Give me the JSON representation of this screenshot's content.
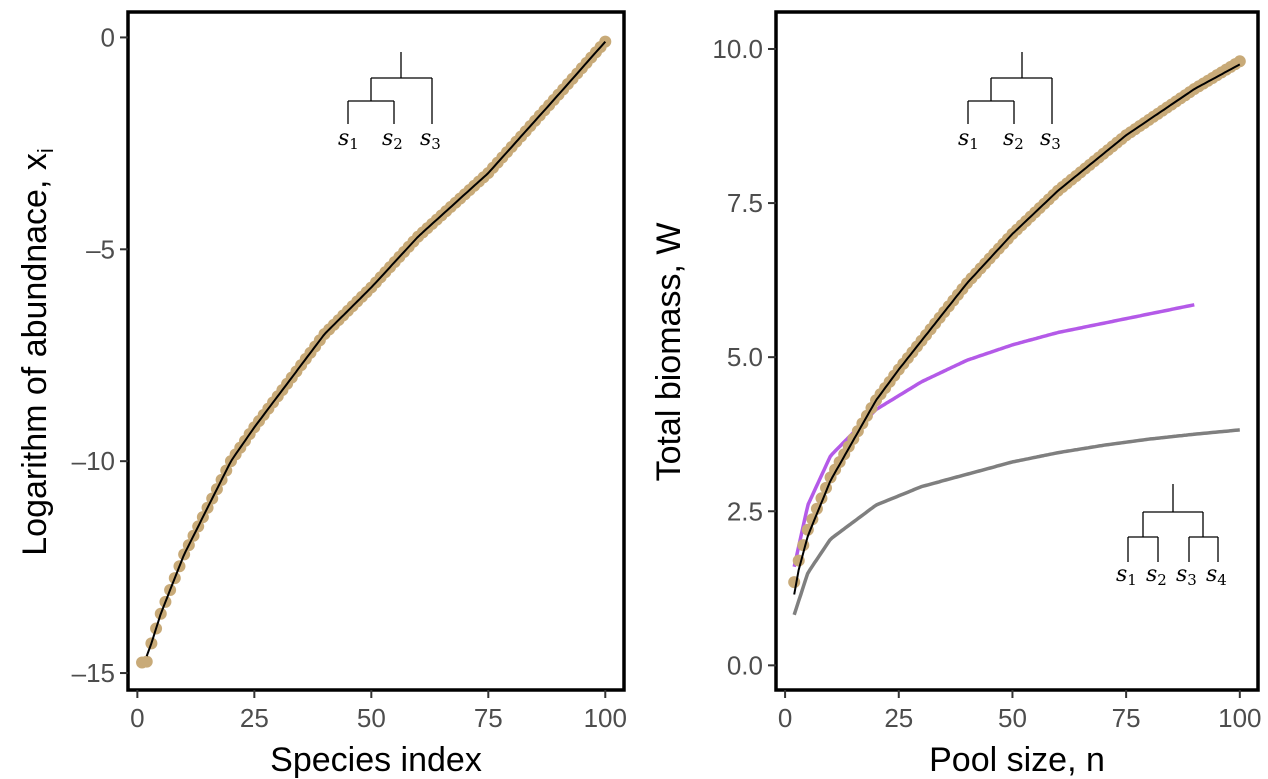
{
  "colors": {
    "points": "#c8aa78",
    "fit_line": "#000000",
    "purple_series": "#b45ae8",
    "gray_series": "#7f7f7f",
    "frame": "#000000",
    "tick_text": "#4d4d4d"
  },
  "chart_data": [
    {
      "type": "scatter",
      "title": "",
      "xlabel": "Species index",
      "ylabel": "Logarithm of abundnace, x",
      "ylabel_sub": "i",
      "xlim": [
        -2,
        104
      ],
      "ylim": [
        -15.4,
        0.6
      ],
      "xticks": [
        0,
        25,
        50,
        75,
        100
      ],
      "yticks": [
        -15,
        -10,
        -5,
        0
      ],
      "ytick_labels": [
        "–15",
        "–10",
        "–5",
        "0"
      ],
      "grid": false,
      "series": [
        {
          "role": "points",
          "x_from": 1,
          "x_to": 100,
          "x_step": 1,
          "y_at": [
            [
              1,
              -14.75
            ],
            [
              2,
              -14.73
            ],
            [
              3,
              -14.3
            ],
            [
              5,
              -13.6
            ],
            [
              10,
              -12.2
            ],
            [
              20,
              -10.0
            ],
            [
              25,
              -9.2
            ],
            [
              40,
              -7.0
            ],
            [
              50,
              -5.9
            ],
            [
              60,
              -4.7
            ],
            [
              75,
              -3.2
            ],
            [
              90,
              -1.35
            ],
            [
              100,
              -0.1
            ]
          ]
        },
        {
          "role": "line",
          "x_from": 2,
          "x_to": 100,
          "y_at": [
            [
              2,
              -14.6
            ],
            [
              3,
              -14.3
            ],
            [
              5,
              -13.6
            ],
            [
              10,
              -12.2
            ],
            [
              20,
              -10.0
            ],
            [
              25,
              -9.2
            ],
            [
              40,
              -7.0
            ],
            [
              50,
              -5.9
            ],
            [
              60,
              -4.7
            ],
            [
              75,
              -3.2
            ],
            [
              90,
              -1.35
            ],
            [
              100,
              -0.1
            ]
          ]
        }
      ],
      "annotations": [
        {
          "type": "tree",
          "label": "s1 s2 s3"
        }
      ]
    },
    {
      "type": "line",
      "title": "",
      "xlabel": "Pool size, n",
      "ylabel": "Total biomass, W",
      "xlim": [
        -2,
        104
      ],
      "ylim": [
        -0.4,
        10.6
      ],
      "xticks": [
        0,
        25,
        50,
        75,
        100
      ],
      "yticks": [
        0.0,
        2.5,
        5.0,
        7.5,
        10.0
      ],
      "ytick_labels": [
        "0.0",
        "2.5",
        "5.0",
        "7.5",
        "10.0"
      ],
      "grid": false,
      "series": [
        {
          "role": "points",
          "x_from": 2,
          "x_to": 100,
          "x_step": 1,
          "y_at": [
            [
              2,
              1.35
            ],
            [
              3,
              1.7
            ],
            [
              5,
              2.2
            ],
            [
              10,
              3.05
            ],
            [
              20,
              4.3
            ],
            [
              25,
              4.8
            ],
            [
              40,
              6.2
            ],
            [
              50,
              7.0
            ],
            [
              60,
              7.7
            ],
            [
              75,
              8.6
            ],
            [
              90,
              9.35
            ],
            [
              100,
              9.8
            ]
          ]
        },
        {
          "role": "line",
          "x_from": 2,
          "x_to": 100,
          "y_at": [
            [
              2,
              1.15
            ],
            [
              3,
              1.55
            ],
            [
              5,
              2.1
            ],
            [
              10,
              3.0
            ],
            [
              20,
              4.3
            ],
            [
              25,
              4.8
            ],
            [
              40,
              6.2
            ],
            [
              50,
              7.0
            ],
            [
              60,
              7.7
            ],
            [
              75,
              8.6
            ],
            [
              90,
              9.35
            ],
            [
              100,
              9.75
            ]
          ]
        },
        {
          "role": "purple",
          "x_from": 2,
          "x_to": 90,
          "y_at": [
            [
              2,
              1.6
            ],
            [
              5,
              2.6
            ],
            [
              10,
              3.4
            ],
            [
              20,
              4.15
            ],
            [
              30,
              4.6
            ],
            [
              40,
              4.95
            ],
            [
              50,
              5.2
            ],
            [
              60,
              5.4
            ],
            [
              70,
              5.55
            ],
            [
              80,
              5.7
            ],
            [
              90,
              5.85
            ]
          ]
        },
        {
          "role": "gray",
          "x_from": 2,
          "x_to": 100,
          "y_at": [
            [
              2,
              0.82
            ],
            [
              5,
              1.5
            ],
            [
              10,
              2.05
            ],
            [
              20,
              2.6
            ],
            [
              30,
              2.9
            ],
            [
              40,
              3.1
            ],
            [
              50,
              3.3
            ],
            [
              60,
              3.45
            ],
            [
              70,
              3.57
            ],
            [
              80,
              3.67
            ],
            [
              90,
              3.75
            ],
            [
              100,
              3.82
            ]
          ]
        }
      ],
      "annotations": [
        {
          "type": "tree",
          "label": "s1 s2 s3"
        },
        {
          "type": "tree",
          "label": "s1 s2 s3 s4"
        }
      ]
    }
  ],
  "tree_labels": {
    "left_top": [
      {
        "base": "s",
        "sub": "1"
      },
      {
        "base": "s",
        "sub": "2"
      },
      {
        "base": "s",
        "sub": "3"
      }
    ],
    "right_top": [
      {
        "base": "s",
        "sub": "1"
      },
      {
        "base": "s",
        "sub": "2"
      },
      {
        "base": "s",
        "sub": "3"
      }
    ],
    "right_bottom": [
      {
        "base": "s",
        "sub": "1"
      },
      {
        "base": "s",
        "sub": "2"
      },
      {
        "base": "s",
        "sub": "3"
      },
      {
        "base": "s",
        "sub": "4"
      }
    ]
  }
}
